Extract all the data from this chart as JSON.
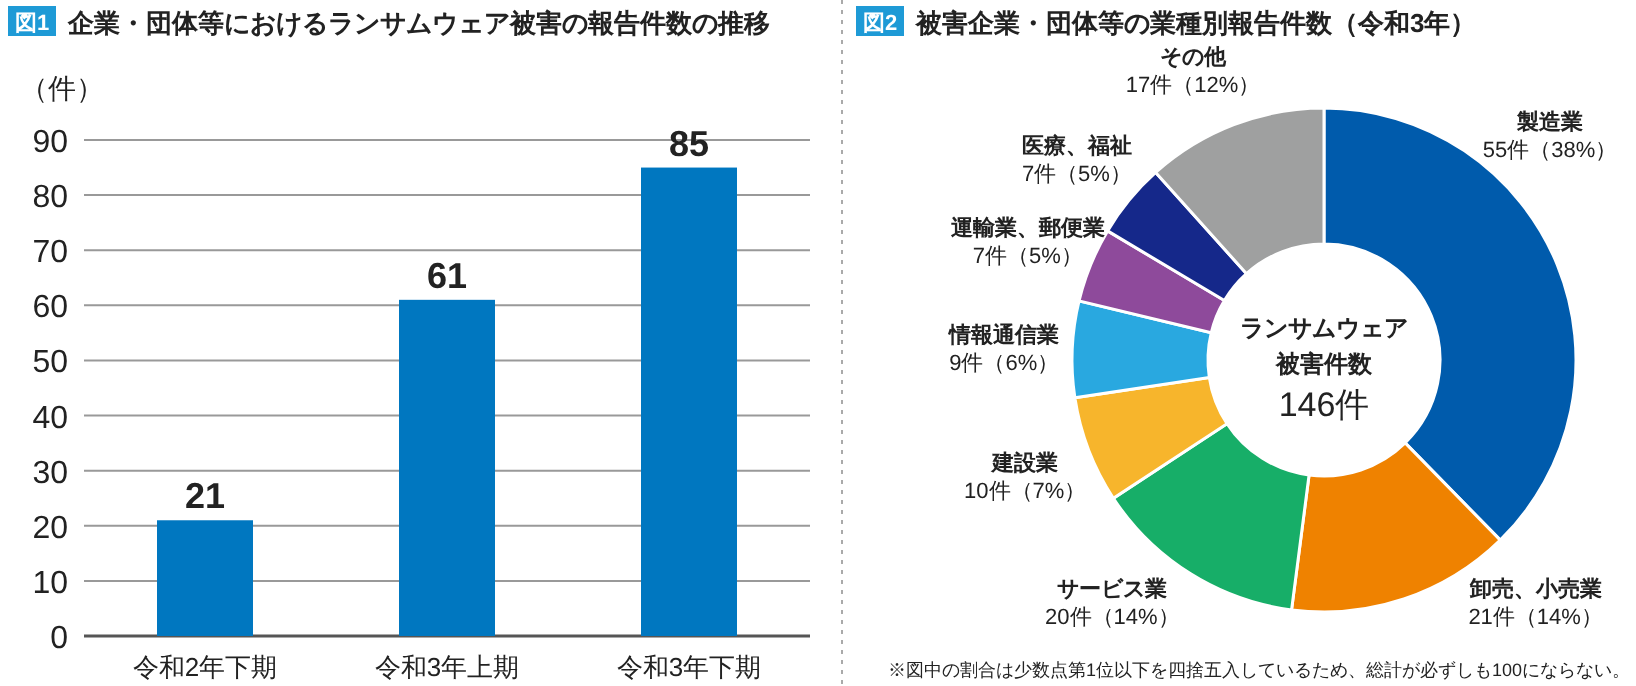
{
  "chart_data": [
    {
      "type": "bar",
      "title": "企業・団体等におけるランサムウェア被害の報告件数の推移",
      "ylabel": "（件）",
      "annotations": [
        "図1"
      ],
      "categories": [
        "令和2年下期",
        "令和3年上期",
        "令和3年下期"
      ],
      "values": [
        21,
        61,
        85
      ],
      "color": "#0077c0",
      "ylim": [
        0,
        90
      ],
      "yticks": [
        0,
        10,
        20,
        30,
        40,
        50,
        60,
        70,
        80,
        90
      ],
      "grid": "y",
      "data_labels": true
    },
    {
      "type": "donut",
      "title": "被害企業・団体等の業種別報告件数（令和3年）",
      "annotations": [
        "図2",
        "ランサムウェア",
        "被害件数",
        "146件",
        "※図中の割合は少数点第1位以下を四捨五入しているため、総計が必ずしも100にならない。"
      ],
      "categories": [
        "製造業",
        "卸売、小売業",
        "サービス業",
        "建設業",
        "情報通信業",
        "運輸業、郵便業",
        "医療、福祉",
        "その他"
      ],
      "values": [
        55,
        21,
        20,
        10,
        9,
        7,
        7,
        17
      ],
      "value_labels": [
        "55件（38%）",
        "21件（14%）",
        "20件（14%）",
        "10件（7%）",
        "9件（6%）",
        "7件（5%）",
        "7件（5%）",
        "17件（12%）"
      ],
      "colors": [
        "#005bac",
        "#ef8200",
        "#17ae68",
        "#f7b52c",
        "#29a8e0",
        "#8e4a9b",
        "#15288a",
        "#9fa0a0"
      ]
    }
  ]
}
